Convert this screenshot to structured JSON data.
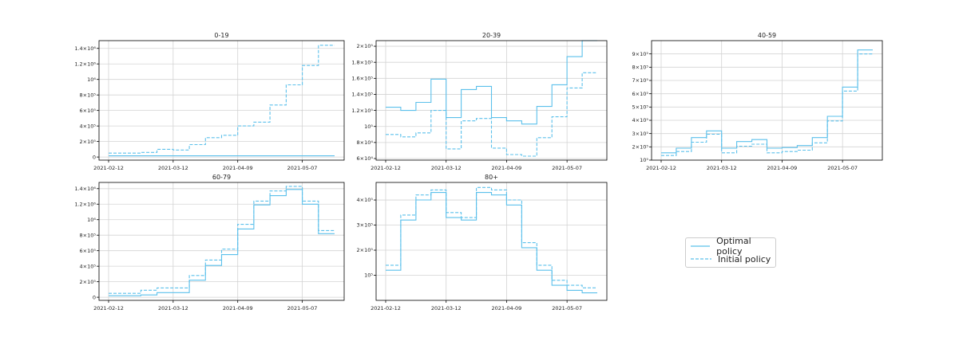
{
  "chart_data": [
    {
      "type": "line",
      "title": "0-19",
      "x": [
        "2021-02-12",
        "2021-02-19",
        "2021-02-26",
        "2021-03-05",
        "2021-03-12",
        "2021-03-19",
        "2021-03-26",
        "2021-04-02",
        "2021-04-09",
        "2021-04-16",
        "2021-04-23",
        "2021-04-30",
        "2021-05-07",
        "2021-05-14",
        "2021-05-21"
      ],
      "xticks": [
        "2021-02-12",
        "2021-03-12",
        "2021-04-09",
        "2021-05-07"
      ],
      "yticks": [
        0,
        200000,
        400000,
        600000,
        800000,
        1000000,
        1200000,
        1400000
      ],
      "ytick_labels": [
        "0",
        "2×10⁵",
        "4×10⁵",
        "6×10⁵",
        "8×10⁵",
        "10⁶",
        "1.2×10⁶",
        "1.4×10⁶"
      ],
      "ylim": [
        -40000,
        1500000
      ],
      "series": [
        {
          "name": "Optimal policy",
          "style": "solid",
          "values": [
            15000,
            15000,
            15000,
            15000,
            15000,
            15000,
            15000,
            15000,
            15000,
            15000,
            15000,
            15000,
            15000,
            15000,
            15000
          ]
        },
        {
          "name": "Initial policy",
          "style": "dashed",
          "values": [
            50000,
            50000,
            60000,
            100000,
            90000,
            160000,
            250000,
            280000,
            400000,
            450000,
            670000,
            930000,
            1180000,
            1440000,
            1440000
          ]
        }
      ]
    },
    {
      "type": "line",
      "title": "20-39",
      "x": [
        "2021-02-12",
        "2021-02-19",
        "2021-02-26",
        "2021-03-05",
        "2021-03-12",
        "2021-03-19",
        "2021-03-26",
        "2021-04-02",
        "2021-04-09",
        "2021-04-16",
        "2021-04-23",
        "2021-04-30",
        "2021-05-07",
        "2021-05-14",
        "2021-05-21"
      ],
      "xticks": [
        "2021-02-12",
        "2021-03-12",
        "2021-04-09",
        "2021-05-07"
      ],
      "yticks": [
        60000,
        80000,
        100000,
        120000,
        140000,
        160000,
        180000,
        200000
      ],
      "ytick_labels": [
        "6×10⁴",
        "8×10⁴",
        "10⁵",
        "1.2×10⁵",
        "1.4×10⁵",
        "1.6×10⁵",
        "1.8×10⁵",
        "2×10⁵"
      ],
      "ylim": [
        58000,
        207000
      ],
      "series": [
        {
          "name": "Optimal policy",
          "style": "solid",
          "values": [
            124000,
            120000,
            130000,
            159000,
            111000,
            146000,
            150000,
            111000,
            107000,
            103000,
            125000,
            152000,
            187000,
            207000,
            207000
          ]
        },
        {
          "name": "Initial policy",
          "style": "dashed",
          "values": [
            90000,
            87000,
            92000,
            120000,
            72000,
            107000,
            110000,
            73000,
            65000,
            63000,
            86000,
            112000,
            148000,
            167000,
            167000
          ]
        }
      ]
    },
    {
      "type": "line",
      "title": "40-59",
      "x": [
        "2021-02-12",
        "2021-02-19",
        "2021-02-26",
        "2021-03-05",
        "2021-03-12",
        "2021-03-19",
        "2021-03-26",
        "2021-04-02",
        "2021-04-09",
        "2021-04-16",
        "2021-04-23",
        "2021-04-30",
        "2021-05-07",
        "2021-05-14",
        "2021-05-21"
      ],
      "xticks": [
        "2021-02-12",
        "2021-03-12",
        "2021-04-09",
        "2021-05-07"
      ],
      "yticks": [
        100000,
        200000,
        300000,
        400000,
        500000,
        600000,
        700000,
        800000,
        900000
      ],
      "ytick_labels": [
        "10⁵",
        "2×10⁵",
        "3×10⁵",
        "4×10⁵",
        "5×10⁵",
        "6×10⁵",
        "7×10⁵",
        "8×10⁵",
        "9×10⁵"
      ],
      "ylim": [
        100000,
        1000000
      ],
      "series": [
        {
          "name": "Optimal policy",
          "style": "solid",
          "values": [
            155000,
            190000,
            270000,
            320000,
            190000,
            240000,
            255000,
            190000,
            195000,
            210000,
            270000,
            430000,
            650000,
            930000,
            930000
          ]
        },
        {
          "name": "Initial policy",
          "style": "dashed",
          "values": [
            135000,
            165000,
            235000,
            295000,
            155000,
            205000,
            220000,
            155000,
            165000,
            175000,
            230000,
            395000,
            620000,
            900000,
            900000
          ]
        }
      ]
    },
    {
      "type": "line",
      "title": "60-79",
      "x": [
        "2021-02-12",
        "2021-02-19",
        "2021-02-26",
        "2021-03-05",
        "2021-03-12",
        "2021-03-19",
        "2021-03-26",
        "2021-04-02",
        "2021-04-09",
        "2021-04-16",
        "2021-04-23",
        "2021-04-30",
        "2021-05-07",
        "2021-05-14",
        "2021-05-21"
      ],
      "xticks": [
        "2021-02-12",
        "2021-03-12",
        "2021-04-09",
        "2021-05-07"
      ],
      "yticks": [
        0,
        200000,
        400000,
        600000,
        800000,
        1000000,
        1200000,
        1400000
      ],
      "ytick_labels": [
        "0",
        "2×10⁵",
        "4×10⁵",
        "6×10⁵",
        "8×10⁵",
        "10⁶",
        "1.2×10⁶",
        "1.4×10⁶"
      ],
      "ylim": [
        -40000,
        1480000
      ],
      "series": [
        {
          "name": "Optimal policy",
          "style": "solid",
          "values": [
            20000,
            20000,
            30000,
            60000,
            60000,
            220000,
            410000,
            550000,
            880000,
            1190000,
            1310000,
            1390000,
            1200000,
            820000,
            820000
          ]
        },
        {
          "name": "Initial policy",
          "style": "dashed",
          "values": [
            50000,
            50000,
            90000,
            120000,
            120000,
            280000,
            480000,
            620000,
            940000,
            1240000,
            1370000,
            1430000,
            1240000,
            860000,
            860000
          ]
        }
      ]
    },
    {
      "type": "line",
      "title": "80+",
      "x": [
        "2021-02-12",
        "2021-02-19",
        "2021-02-26",
        "2021-03-05",
        "2021-03-12",
        "2021-03-19",
        "2021-03-26",
        "2021-04-02",
        "2021-04-09",
        "2021-04-16",
        "2021-04-23",
        "2021-04-30",
        "2021-05-07",
        "2021-05-14",
        "2021-05-21"
      ],
      "xticks": [
        "2021-02-12",
        "2021-03-12",
        "2021-04-09",
        "2021-05-07"
      ],
      "yticks": [
        100000,
        200000,
        300000,
        400000
      ],
      "ytick_labels": [
        "10⁵",
        "2×10⁵",
        "3×10⁵",
        "4×10⁵"
      ],
      "ylim": [
        0,
        470000
      ],
      "series": [
        {
          "name": "Optimal policy",
          "style": "solid",
          "values": [
            120000,
            320000,
            400000,
            430000,
            330000,
            320000,
            430000,
            420000,
            380000,
            210000,
            120000,
            60000,
            40000,
            30000,
            30000
          ]
        },
        {
          "name": "Initial policy",
          "style": "dashed",
          "values": [
            140000,
            340000,
            420000,
            440000,
            350000,
            330000,
            450000,
            440000,
            400000,
            230000,
            140000,
            80000,
            60000,
            50000,
            50000
          ]
        }
      ]
    }
  ],
  "legend": {
    "placement": "center-right",
    "entries": [
      {
        "label": "Optimal policy",
        "style": "solid"
      },
      {
        "label": "Initial policy",
        "style": "dashed"
      }
    ]
  },
  "colors": {
    "line": "#5bc0eb",
    "grid": "#d3d3d3",
    "axis": "#000000",
    "text": "#222222"
  }
}
